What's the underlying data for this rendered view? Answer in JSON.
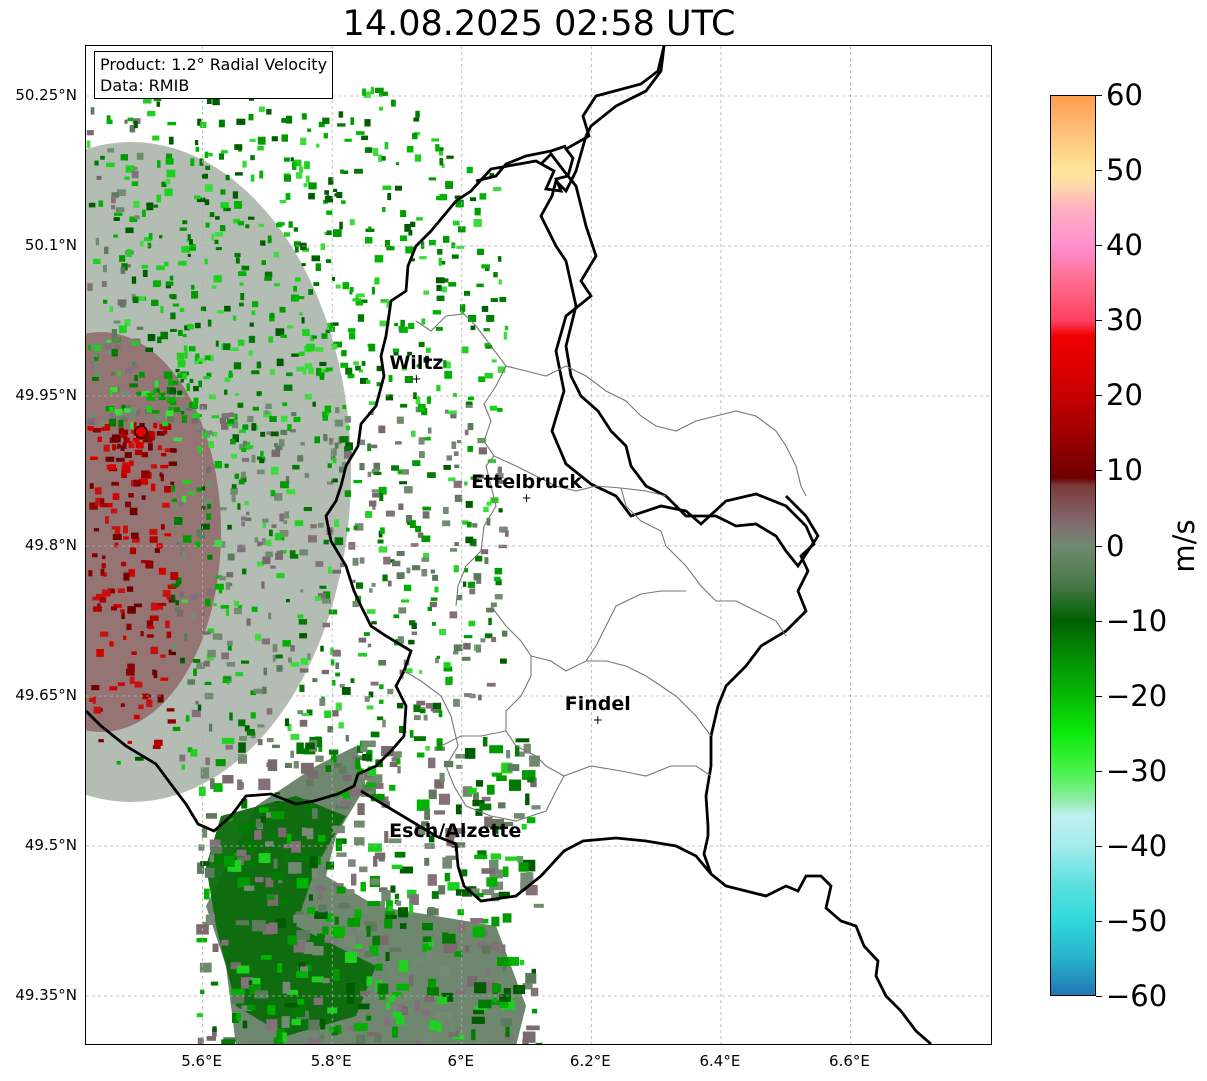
{
  "title": "14.08.2025 02:58 UTC",
  "info_box": {
    "product": "Product: 1.2° Radial Velocity",
    "data": "Data: RMIB"
  },
  "map": {
    "lon_range": [
      5.42,
      6.82
    ],
    "lat_range": [
      49.3,
      50.3
    ],
    "lat_ticks": [
      {
        "value": 50.25,
        "label": "50.25°N"
      },
      {
        "value": 50.1,
        "label": "50.1°N"
      },
      {
        "value": 49.95,
        "label": "49.95°N"
      },
      {
        "value": 49.8,
        "label": "49.8°N"
      },
      {
        "value": 49.65,
        "label": "49.65°N"
      },
      {
        "value": 49.5,
        "label": "49.5°N"
      },
      {
        "value": 49.35,
        "label": "49.35°N"
      }
    ],
    "lon_ticks": [
      {
        "value": 5.6,
        "label": "5.6°E"
      },
      {
        "value": 5.8,
        "label": "5.8°E"
      },
      {
        "value": 6.0,
        "label": "6°E"
      },
      {
        "value": 6.2,
        "label": "6.2°E"
      },
      {
        "value": 6.4,
        "label": "6.4°E"
      },
      {
        "value": 6.6,
        "label": "6.6°E"
      }
    ],
    "radar_site": {
      "lon": 5.505,
      "lat": 49.914,
      "color": "#e00000"
    },
    "cities": [
      {
        "name": "Wiltz",
        "lon": 5.93,
        "lat": 49.967
      },
      {
        "name": "Ettelbruck",
        "lon": 6.1,
        "lat": 49.848
      },
      {
        "name": "Findel",
        "lon": 6.21,
        "lat": 49.626
      },
      {
        "name": "Esch/Alzette",
        "lon": 5.99,
        "lat": 49.499
      }
    ]
  },
  "colorbar": {
    "unit": "m/s",
    "min": -60,
    "max": 60,
    "ticks": [
      {
        "value": 60,
        "label": "60"
      },
      {
        "value": 50,
        "label": "50"
      },
      {
        "value": 40,
        "label": "40"
      },
      {
        "value": 30,
        "label": "30"
      },
      {
        "value": 20,
        "label": "20"
      },
      {
        "value": 10,
        "label": "10"
      },
      {
        "value": 0,
        "label": "0"
      },
      {
        "value": -10,
        "label": "−10"
      },
      {
        "value": -20,
        "label": "−20"
      },
      {
        "value": -30,
        "label": "−30"
      },
      {
        "value": -40,
        "label": "−40"
      },
      {
        "value": -50,
        "label": "−50"
      },
      {
        "value": -60,
        "label": "−60"
      }
    ],
    "color_stops": [
      {
        "value": -60,
        "color": "#1f78b4"
      },
      {
        "value": -55,
        "color": "#27b3cc"
      },
      {
        "value": -50,
        "color": "#30dada"
      },
      {
        "value": -45,
        "color": "#5fe0e0"
      },
      {
        "value": -40,
        "color": "#a5ecec"
      },
      {
        "value": -36,
        "color": "#bff0f0"
      },
      {
        "value": -34,
        "color": "#8eeea8"
      },
      {
        "value": -30,
        "color": "#47f247"
      },
      {
        "value": -25,
        "color": "#0bea0b"
      },
      {
        "value": -20,
        "color": "#05b805"
      },
      {
        "value": -15,
        "color": "#048f04"
      },
      {
        "value": -10,
        "color": "#006000"
      },
      {
        "value": -5,
        "color": "#4a7a4a"
      },
      {
        "value": 0,
        "color": "#6f8a6f"
      },
      {
        "value": 3,
        "color": "#836a70"
      },
      {
        "value": 8,
        "color": "#7a3a3a"
      },
      {
        "value": 9,
        "color": "#6e0000"
      },
      {
        "value": 15,
        "color": "#a00000"
      },
      {
        "value": 20,
        "color": "#c80000"
      },
      {
        "value": 28,
        "color": "#f20000"
      },
      {
        "value": 30,
        "color": "#ff4060"
      },
      {
        "value": 35,
        "color": "#ff6b8a"
      },
      {
        "value": 40,
        "color": "#ff8fd0"
      },
      {
        "value": 45,
        "color": "#ffb0c0"
      },
      {
        "value": 48,
        "color": "#ffd8a8"
      },
      {
        "value": 50,
        "color": "#ffe59a"
      },
      {
        "value": 55,
        "color": "#ffc27a"
      },
      {
        "value": 60,
        "color": "#ff9d50"
      }
    ]
  }
}
